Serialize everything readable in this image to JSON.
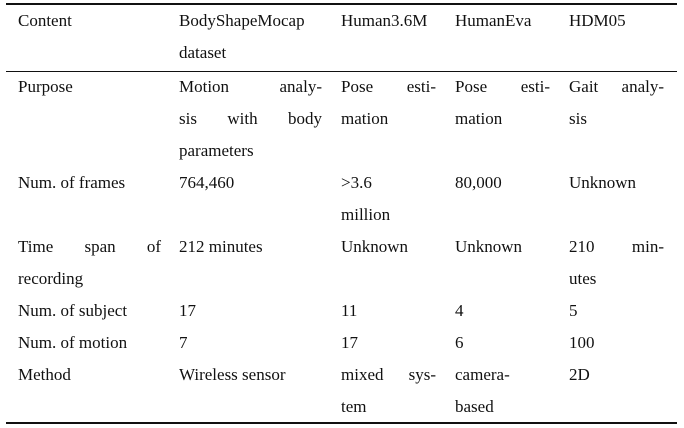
{
  "table": {
    "headers": [
      [
        "Content"
      ],
      [
        "BodyShapeMocap",
        "dataset"
      ],
      [
        "Human3.6M"
      ],
      [
        "HumanEva"
      ],
      [
        "HDM05"
      ]
    ],
    "rows": [
      {
        "name": "purpose",
        "cells": [
          [
            "Purpose"
          ],
          [
            "Motion analy-",
            "sis with body",
            "parameters"
          ],
          [
            "Pose esti-",
            "mation"
          ],
          [
            "Pose esti-",
            "mation"
          ],
          [
            "Gait analy-",
            "sis"
          ]
        ]
      },
      {
        "name": "num-frames",
        "cells": [
          [
            "Num. of frames"
          ],
          [
            "764,460"
          ],
          [
            ">3.6",
            "million"
          ],
          [
            "80,000"
          ],
          [
            "Unknown"
          ]
        ]
      },
      {
        "name": "time-span",
        "cells": [
          [
            "Time span of",
            "recording"
          ],
          [
            "212 minutes"
          ],
          [
            "Unknown"
          ],
          [
            "Unknown"
          ],
          [
            "210 min-",
            "utes"
          ]
        ]
      },
      {
        "name": "num-subject",
        "cells": [
          [
            "Num. of subject"
          ],
          [
            "17"
          ],
          [
            "11"
          ],
          [
            "4"
          ],
          [
            "5"
          ]
        ]
      },
      {
        "name": "num-motion",
        "cells": [
          [
            "Num. of motion"
          ],
          [
            "7"
          ],
          [
            "17"
          ],
          [
            "6"
          ],
          [
            "100"
          ]
        ]
      },
      {
        "name": "method",
        "cells": [
          [
            "Method"
          ],
          [
            "Wireless sensor"
          ],
          [
            "mixed sys-",
            "tem"
          ],
          [
            "camera-",
            "based"
          ],
          [
            "2D"
          ]
        ]
      }
    ]
  }
}
